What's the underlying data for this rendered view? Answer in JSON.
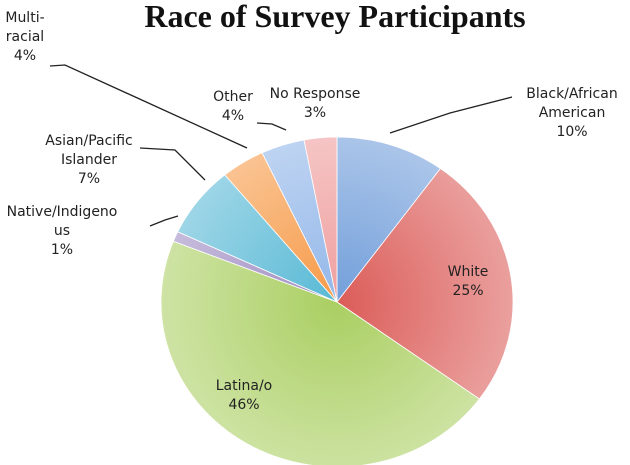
{
  "chart_data": {
    "type": "pie",
    "title": "Race of Survey Participants",
    "series": [
      {
        "name": "",
        "slices": [
          {
            "label_lines": [
              "Black/African",
              "American"
            ],
            "value_text": "10%",
            "value": 10,
            "color": "#6b9ad8"
          },
          {
            "label_lines": [
              "White"
            ],
            "value_text": "25%",
            "value": 25,
            "color": "#d9534f"
          },
          {
            "label_lines": [
              "Latina/o"
            ],
            "value_text": "46%",
            "value": 46,
            "color": "#a6cc5a"
          },
          {
            "label_lines": [
              "Native/Indigeno",
              "us"
            ],
            "value_text": "1%",
            "value": 1,
            "color": "#9a86bf"
          },
          {
            "label_lines": [
              "Asian/Pacific",
              "Islander"
            ],
            "value_text": "7%",
            "value": 7,
            "color": "#4fb5d3"
          },
          {
            "label_lines": [
              "Multi-",
              "racial"
            ],
            "value_text": "4%",
            "value": 4,
            "color": "#f5953e"
          },
          {
            "label_lines": [
              "Other"
            ],
            "value_text": "4%",
            "value": 4,
            "color": "#8db3e8"
          },
          {
            "label_lines": [
              "No Response"
            ],
            "value_text": "3%",
            "value": 3,
            "color": "#ee9a9a"
          }
        ]
      }
    ]
  }
}
